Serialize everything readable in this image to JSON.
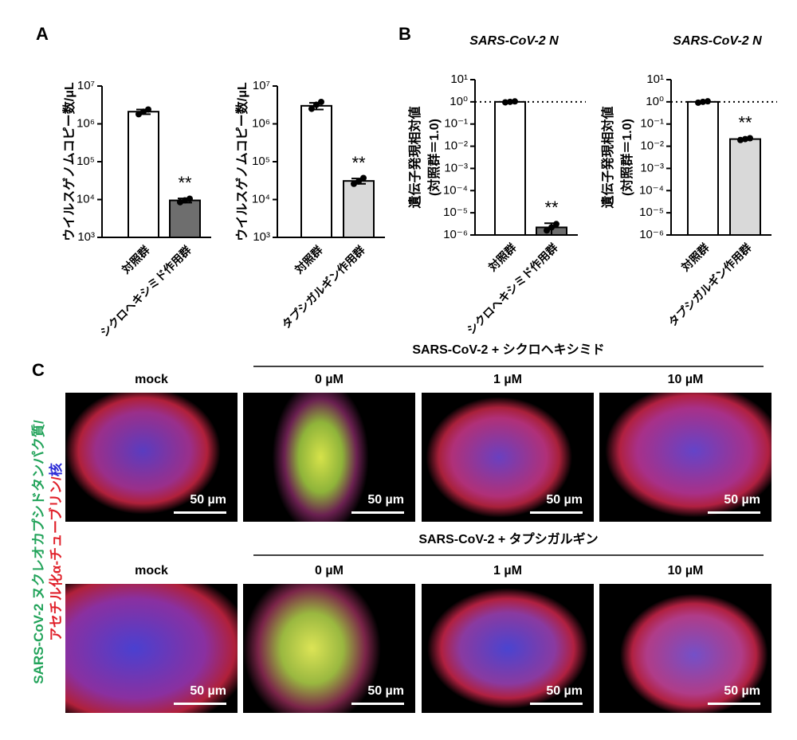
{
  "panel_labels": {
    "a": "A",
    "b": "B",
    "c": "C"
  },
  "chart_data": [
    {
      "type": "bar",
      "ylabel": "ウイルスゲノムコピー数/μL",
      "categories": [
        "対照群",
        "シクロヘキシミド作用群"
      ],
      "values": [
        2100000,
        9500
      ],
      "errors": [
        300000,
        1200
      ],
      "points": [
        [
          1800000,
          2100000,
          2400000
        ],
        [
          8500,
          9500,
          10500
        ]
      ],
      "colors": [
        "#ffffff",
        "#6e6e6e"
      ],
      "annotations": [
        null,
        "**"
      ],
      "log_scale": true,
      "ylim": [
        1000,
        10000000
      ],
      "yticks": [
        {
          "value": 1000,
          "label": "10³"
        },
        {
          "value": 10000,
          "label": "10⁴"
        },
        {
          "value": 100000,
          "label": "10⁵"
        },
        {
          "value": 1000000,
          "label": "10⁶"
        },
        {
          "value": 10000000,
          "label": "10⁷"
        }
      ]
    },
    {
      "type": "bar",
      "ylabel": "ウイルスゲノムコピー数/μL",
      "categories": [
        "対照群",
        "タプシガルギン作用群"
      ],
      "values": [
        3000000,
        31000
      ],
      "errors": [
        600000,
        5000
      ],
      "points": [
        [
          2500000,
          3200000,
          3800000
        ],
        [
          26000,
          30000,
          37000
        ]
      ],
      "colors": [
        "#ffffff",
        "#d9d9d9"
      ],
      "annotations": [
        null,
        "**"
      ],
      "log_scale": true,
      "ylim": [
        1000,
        10000000
      ],
      "yticks": [
        {
          "value": 1000,
          "label": "10³"
        },
        {
          "value": 10000,
          "label": "10⁴"
        },
        {
          "value": 100000,
          "label": "10⁵"
        },
        {
          "value": 1000000,
          "label": "10⁶"
        },
        {
          "value": 10000000,
          "label": "10⁷"
        }
      ]
    },
    {
      "type": "bar",
      "title": "SARS-CoV-2 N",
      "ylabel": [
        "遺伝子発現相対値",
        "(対照群＝1.0)"
      ],
      "categories": [
        "対照群",
        "シクロヘキシミド作用群"
      ],
      "values": [
        1.0,
        2.2e-06
      ],
      "errors": [
        0.05,
        1.2e-06
      ],
      "points": [
        [
          0.95,
          1.0,
          1.05
        ],
        [
          1.6e-06,
          2.2e-06,
          3.1e-06
        ]
      ],
      "colors": [
        "#ffffff",
        "#6e6e6e"
      ],
      "annotations": [
        null,
        "**"
      ],
      "reference_line": 1,
      "log_scale": true,
      "ylim": [
        1e-06,
        10
      ],
      "yticks": [
        {
          "value": 1e-06,
          "label": "10⁻⁶"
        },
        {
          "value": 1e-05,
          "label": "10⁻⁵"
        },
        {
          "value": 0.0001,
          "label": "10⁻⁴"
        },
        {
          "value": 0.001,
          "label": "10⁻³"
        },
        {
          "value": 0.01,
          "label": "10⁻²"
        },
        {
          "value": 0.1,
          "label": "10⁻¹"
        },
        {
          "value": 1,
          "label": "10⁰"
        },
        {
          "value": 10,
          "label": "10¹"
        }
      ]
    },
    {
      "type": "bar",
      "title": "SARS-CoV-2 N",
      "ylabel": [
        "遺伝子発現相対値",
        "(対照群＝1.0)"
      ],
      "categories": [
        "対照群",
        "タプシガルギン作用群"
      ],
      "values": [
        1.0,
        0.021
      ],
      "errors": [
        0.08,
        0.002
      ],
      "points": [
        [
          0.92,
          1.0,
          1.06
        ],
        [
          0.019,
          0.021,
          0.023
        ]
      ],
      "colors": [
        "#ffffff",
        "#d9d9d9"
      ],
      "annotations": [
        null,
        "**"
      ],
      "reference_line": 1,
      "log_scale": true,
      "ylim": [
        1e-06,
        10
      ],
      "yticks": [
        {
          "value": 1e-06,
          "label": "10⁻⁶"
        },
        {
          "value": 1e-05,
          "label": "10⁻⁵"
        },
        {
          "value": 0.0001,
          "label": "10⁻⁴"
        },
        {
          "value": 0.001,
          "label": "10⁻³"
        },
        {
          "value": 0.01,
          "label": "10⁻²"
        },
        {
          "value": 0.1,
          "label": "10⁻¹"
        },
        {
          "value": 1,
          "label": "10⁰"
        },
        {
          "value": 10,
          "label": "10¹"
        }
      ]
    }
  ],
  "panel_c": {
    "rows": [
      {
        "header": "SARS-CoV-2 + シクロヘキシミド",
        "columns": [
          "mock",
          "0 µM",
          "1 µM",
          "10 µM"
        ]
      },
      {
        "header": "SARS-CoV-2 + タプシガルギン",
        "columns": [
          "mock",
          "0 µM",
          "1 µM",
          "10 µM"
        ]
      }
    ],
    "scale_bar": "50 µm",
    "side_label": [
      [
        {
          "text": "SARS-CoV-2 ヌクレオカプシドタンパク質/",
          "color": "#22a35a"
        }
      ],
      [
        {
          "text": "アセチル化α-チューブリン/",
          "color": "#e0202a"
        },
        {
          "text": "核",
          "color": "#2b2bd6"
        }
      ]
    ]
  }
}
